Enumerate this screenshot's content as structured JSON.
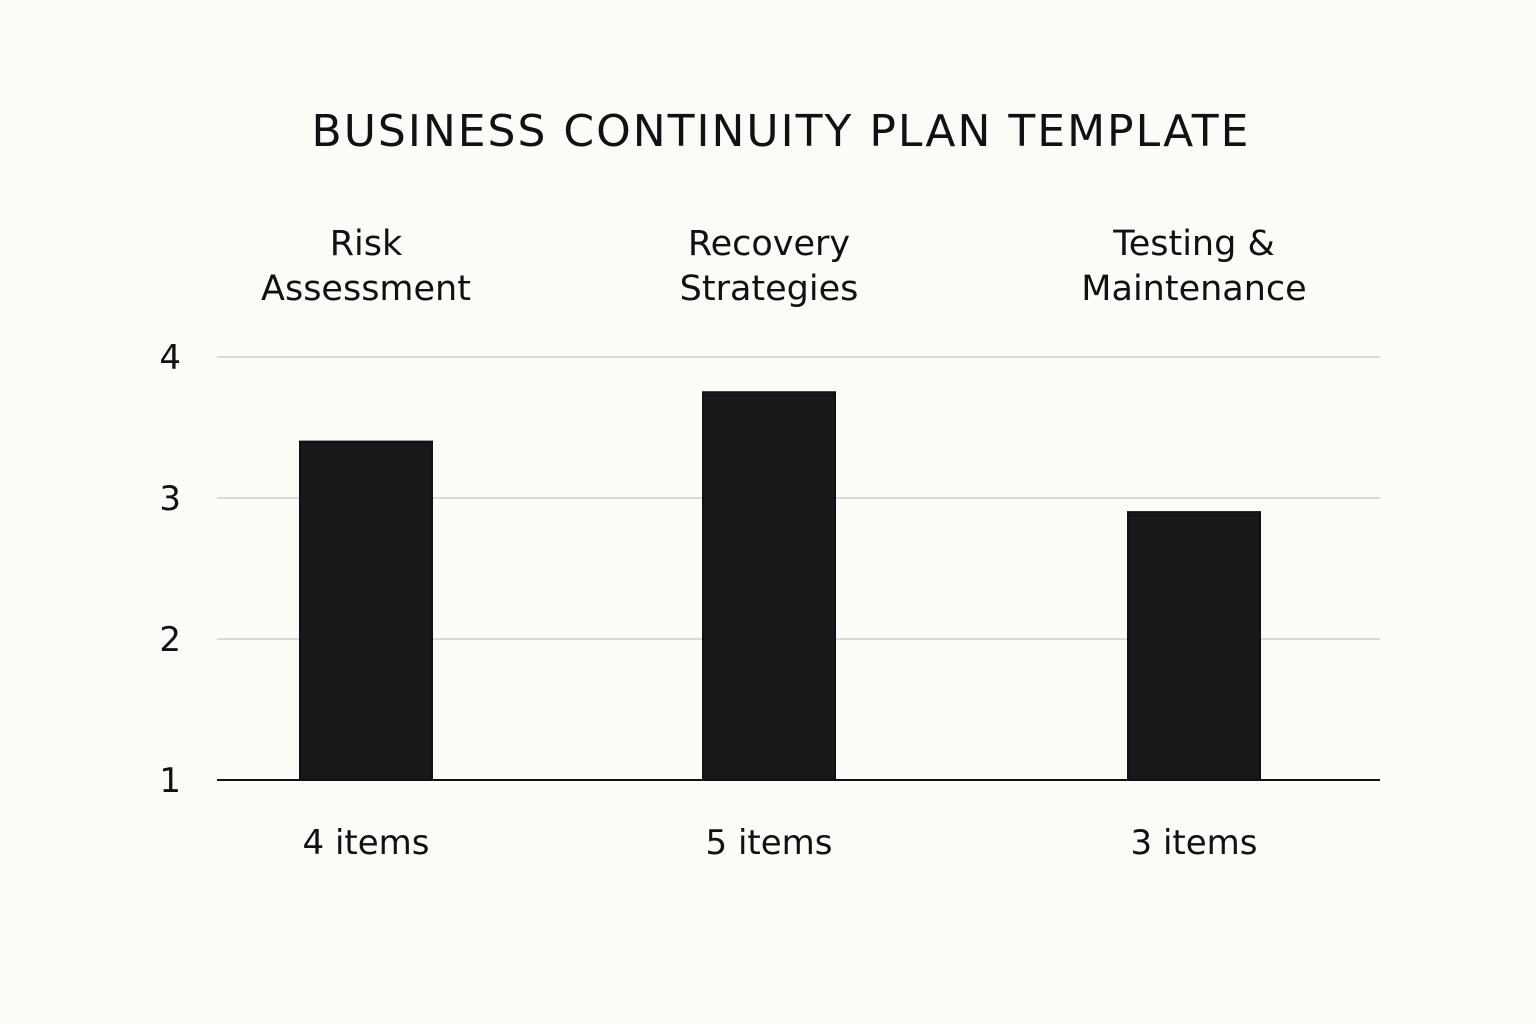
{
  "chart_data": {
    "type": "bar",
    "title": "BUSINESS CONTINUITY PLAN TEMPLATE",
    "categories": [
      [
        "Risk",
        "Assessment"
      ],
      [
        "Recovery",
        "Strategies"
      ],
      [
        "Testing &",
        "Maintenance"
      ]
    ],
    "values": [
      3.4,
      3.75,
      2.9
    ],
    "data_labels": [
      "4 items",
      "5 items",
      "3 items"
    ],
    "yticks": [
      1,
      2,
      3,
      4
    ],
    "ylim": [
      1,
      4
    ],
    "grid": true,
    "xlabel": "",
    "ylabel": "",
    "colors": {
      "bar": "#181818",
      "grid": "#d9d9d9",
      "axis": "#111111",
      "background": "#fcfbf7"
    }
  }
}
